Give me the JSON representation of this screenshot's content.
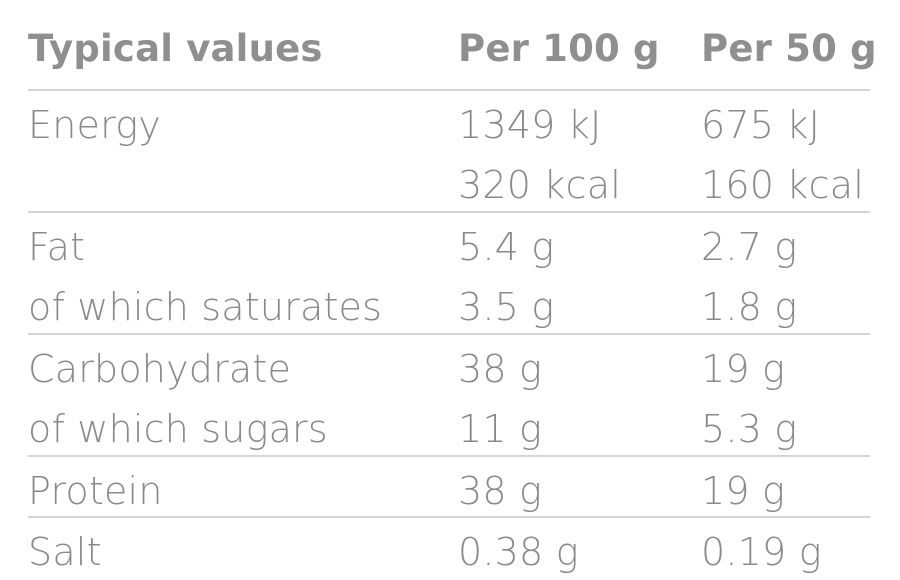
{
  "header": {
    "label": "Typical values",
    "col_per100": "Per 100 g",
    "col_per50": "Per 50 g"
  },
  "rows": [
    {
      "label": "Energy",
      "per100": "1349 kJ",
      "per50": "675 kJ"
    },
    {
      "label": "",
      "per100": "320 kcal",
      "per50": "160 kcal"
    },
    {
      "label": "Fat",
      "per100": "5.4 g",
      "per50": "2.7 g"
    },
    {
      "label": "of which saturates",
      "per100": "3.5 g",
      "per50": "1.8 g"
    },
    {
      "label": "Carbohydrate",
      "per100": "38 g",
      "per50": "19 g"
    },
    {
      "label": "of which sugars",
      "per100": "11 g",
      "per50": "5.3 g"
    },
    {
      "label": "Protein",
      "per100": "38 g",
      "per50": "19 g"
    },
    {
      "label": "Salt",
      "per100": "0.38 g",
      "per50": "0.19 g"
    }
  ]
}
